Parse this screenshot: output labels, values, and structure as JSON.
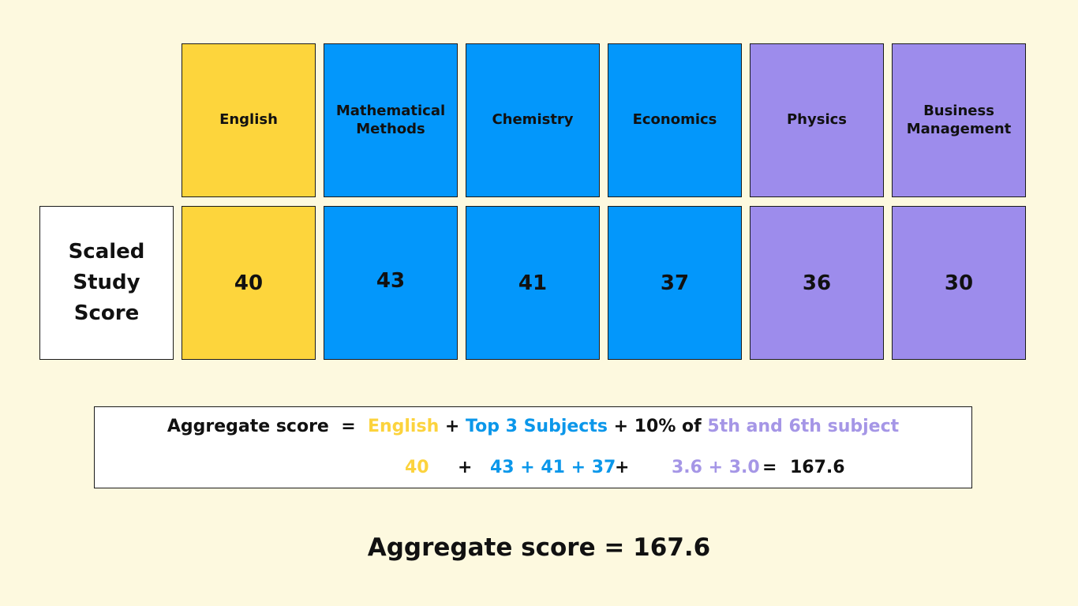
{
  "row_label": "Scaled Study Score",
  "subjects": [
    {
      "name": "English",
      "score": "40",
      "group": "english",
      "color": "#fdd53c"
    },
    {
      "name": "Mathematical Methods",
      "score": "43",
      "group": "top3",
      "color": "#0397fb"
    },
    {
      "name": "Chemistry",
      "score": "41",
      "group": "top3",
      "color": "#0397fb"
    },
    {
      "name": "Economics",
      "score": "37",
      "group": "top3",
      "color": "#0397fb"
    },
    {
      "name": "Physics",
      "score": "36",
      "group": "fifthsixth",
      "color": "#9d8cec"
    },
    {
      "name": "Business Management",
      "score": "30",
      "group": "fifthsixth",
      "color": "#9d8cec"
    }
  ],
  "formula": {
    "label": "Aggregate score",
    "eq": "=",
    "english": "English",
    "plus": "+",
    "top3": "Top 3 Subjects",
    "plus_pct": "+ 10% of",
    "fifth_sixth": "5th and 6th subject",
    "values": {
      "english": "40",
      "plus": "+",
      "top3": "43 + 41 + 37",
      "fifth_sixth": "3.6 + 3.0",
      "eq": "=",
      "result": "167.6"
    }
  },
  "final": "Aggregate score = 167.6",
  "colors": {
    "background": "#fdf9df",
    "english": "#fdd53c",
    "top3": "#0397fb",
    "fifth_sixth": "#9d8cec"
  }
}
